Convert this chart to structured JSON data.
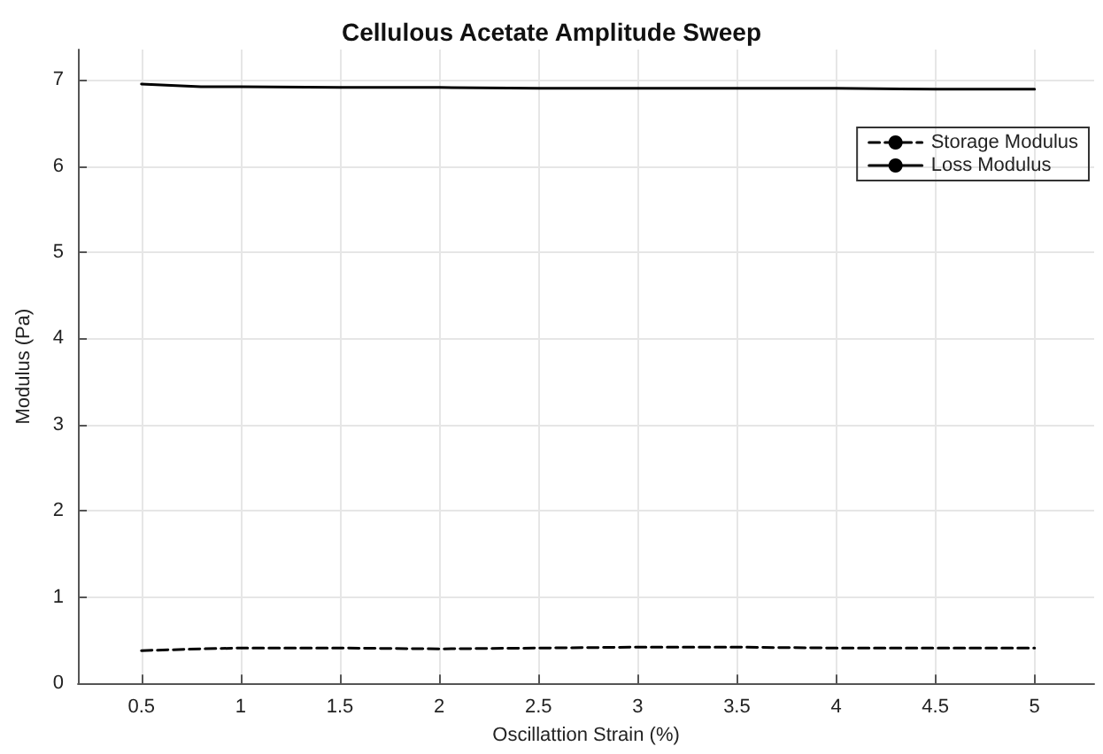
{
  "chart_data": {
    "type": "line",
    "title": "Cellulous Acetate Amplitude Sweep",
    "xlabel": "Oscillattion Strain (%)",
    "ylabel": "Modulus (Pa)",
    "x": [
      0.5,
      0.8,
      1,
      1.5,
      2,
      2.5,
      3,
      3.5,
      4,
      4.5,
      5
    ],
    "series": [
      {
        "name": "Storage Modulus",
        "color": "#000000",
        "line_style": "dashed",
        "values": [
          0.38,
          0.4,
          0.41,
          0.41,
          0.4,
          0.41,
          0.42,
          0.42,
          0.41,
          0.41,
          0.41
        ]
      },
      {
        "name": "Loss Modulus",
        "color": "#000000",
        "line_style": "solid",
        "values": [
          6.95,
          6.92,
          6.92,
          6.91,
          6.91,
          6.9,
          6.9,
          6.9,
          6.9,
          6.89,
          6.89
        ]
      }
    ],
    "xlim": [
      0.18,
      5.3
    ],
    "xticks": [
      0.5,
      1,
      1.5,
      2,
      2.5,
      3,
      3.5,
      4,
      4.5,
      5
    ],
    "ylim": [
      0,
      7.35
    ],
    "yticks": [
      0,
      1,
      2,
      3,
      4,
      5,
      6,
      7
    ],
    "grid": true,
    "legend": "top right",
    "marker": "none"
  }
}
